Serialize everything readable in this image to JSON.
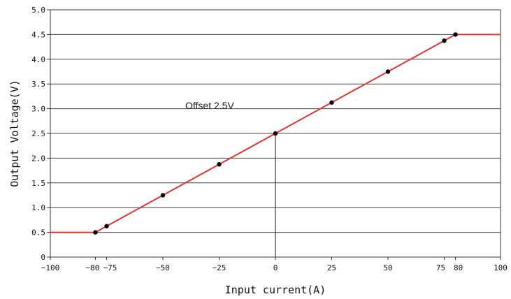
{
  "chart_data": {
    "type": "line",
    "title": "",
    "xlabel": "Input current(A)",
    "ylabel": "Output Voltage(V)",
    "xlim": [
      -100,
      100
    ],
    "ylim": [
      0,
      5.0
    ],
    "grid": "horizontal",
    "x_ticks": [
      -100,
      -80,
      -75,
      -50,
      -25,
      0,
      25,
      50,
      75,
      80,
      100
    ],
    "x_tick_labels": [
      "−100",
      "−80",
      "−75",
      "−50",
      "−25",
      "0",
      "25",
      "50",
      "75",
      "80",
      "100"
    ],
    "y_ticks": [
      0,
      0.5,
      1.0,
      1.5,
      2.0,
      2.5,
      3.0,
      3.5,
      4.0,
      4.5,
      5.0
    ],
    "y_tick_labels": [
      "0",
      "0.5",
      "1.0",
      "1.5",
      "2.0",
      "2.5",
      "3.0",
      "3.5",
      "4.0",
      "4.5",
      "5.0"
    ],
    "annotation": "Offset 2.5V",
    "line_color": "#e8312f",
    "line": {
      "x": [
        -100,
        -80,
        80,
        100
      ],
      "y": [
        0.5,
        0.5,
        4.5,
        4.5
      ]
    },
    "points": {
      "x": [
        -80,
        -75,
        -50,
        -25,
        0,
        25,
        50,
        75,
        80
      ],
      "y": [
        0.5,
        0.625,
        1.25,
        1.875,
        2.5,
        3.125,
        3.75,
        4.375,
        4.5
      ]
    }
  }
}
